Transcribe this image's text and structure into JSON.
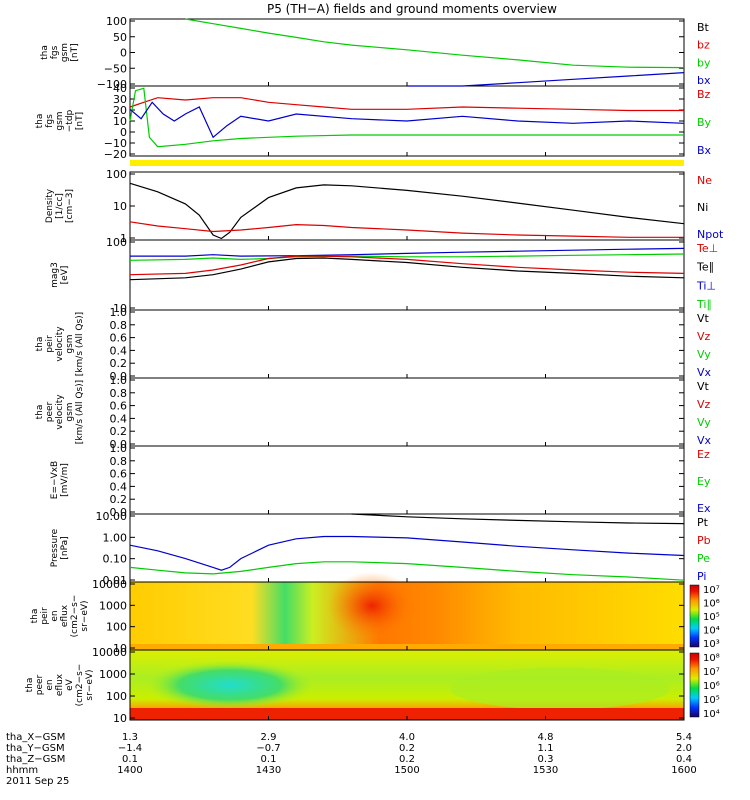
{
  "title": "P5 (TH−A) fields and ground moments overview",
  "date_label": "2011 Sep 25",
  "colors": {
    "black": "#000000",
    "red": "#dd0000",
    "green": "#00cc00",
    "blue": "#0000cc",
    "yellow": "#ffee00"
  },
  "panels": [
    {
      "id": "fgs_gse",
      "ylabel": [
        "tha",
        "fgs",
        "gsm",
        "[nT]"
      ],
      "ticks": [
        "100",
        "50",
        "0",
        "−50",
        "−100"
      ],
      "legend": [
        {
          "t": "Bt",
          "c": "black"
        },
        {
          "t": "bz",
          "c": "red"
        },
        {
          "t": "by",
          "c": "green"
        },
        {
          "t": "bx",
          "c": "blue"
        }
      ]
    },
    {
      "id": "fgs_dsl",
      "ylabel": [
        "tha",
        "fgs",
        "gsm",
        "−tdp",
        "[nT]"
      ],
      "ticks": [
        "40",
        "30",
        "20",
        "10",
        "0",
        "−10",
        "−20"
      ],
      "legend": [
        {
          "t": "Bz",
          "c": "red"
        },
        {
          "t": "By",
          "c": "green"
        },
        {
          "t": "Bx",
          "c": "blue"
        }
      ]
    },
    {
      "id": "density",
      "ylabel": [
        "Density",
        "[1/cc]",
        "[cm−3]"
      ],
      "ticks": [
        "100",
        "10",
        "1"
      ],
      "legend": [
        {
          "t": "Ne",
          "c": "red"
        },
        {
          "t": "Ni",
          "c": "black"
        },
        {
          "t": "Npot",
          "c": "blue"
        }
      ]
    },
    {
      "id": "temp",
      "ylabel": [
        "mag3",
        "[eV]"
      ],
      "ticks": [
        "100",
        "10"
      ],
      "legend": [
        {
          "t": "Te⊥",
          "c": "red"
        },
        {
          "t": "Te∥",
          "c": "black"
        },
        {
          "t": "Ti⊥",
          "c": "blue"
        },
        {
          "t": "Ti∥",
          "c": "green"
        }
      ]
    },
    {
      "id": "peir_vel",
      "ylabel": [
        "tha",
        "peir",
        "velocity",
        "gsm",
        "[km/s (All Qs)]"
      ],
      "ticks": [
        "1.0",
        "0.8",
        "0.6",
        "0.4",
        "0.2",
        "0.0"
      ],
      "legend": [
        {
          "t": "Vt",
          "c": "black"
        },
        {
          "t": "Vz",
          "c": "red"
        },
        {
          "t": "Vy",
          "c": "green"
        },
        {
          "t": "Vx",
          "c": "blue"
        }
      ]
    },
    {
      "id": "peer_vel",
      "ylabel": [
        "tha",
        "peer",
        "velocity",
        "gsm",
        "[km/s (All Qs)]"
      ],
      "ticks": [
        "1.0",
        "0.8",
        "0.6",
        "0.4",
        "0.2",
        "0.0"
      ],
      "legend": [
        {
          "t": "Vt",
          "c": "black"
        },
        {
          "t": "Vz",
          "c": "red"
        },
        {
          "t": "Vy",
          "c": "green"
        },
        {
          "t": "Vx",
          "c": "blue"
        }
      ]
    },
    {
      "id": "efield",
      "ylabel": [
        "E=−VxB",
        "[mV/m]"
      ],
      "ticks": [
        "1.0",
        "0.8",
        "0.6",
        "0.4",
        "0.2",
        "0.0"
      ],
      "legend": [
        {
          "t": "Ez",
          "c": "red"
        },
        {
          "t": "Ey",
          "c": "green"
        },
        {
          "t": "Ex",
          "c": "blue"
        }
      ]
    },
    {
      "id": "pressure",
      "ylabel": [
        "Pressure",
        "[nPa]"
      ],
      "ticks": [
        "10.00",
        "1.00",
        "0.10",
        "0.01"
      ],
      "legend": [
        {
          "t": "Pt",
          "c": "black"
        },
        {
          "t": "Pb",
          "c": "red"
        },
        {
          "t": "Pe",
          "c": "green"
        },
        {
          "t": "Pi",
          "c": "blue"
        }
      ]
    },
    {
      "id": "peir_spec",
      "ylabel": [
        "tha",
        "peir",
        "en",
        "eflux",
        "(cm2−s−",
        "sr−eV)"
      ],
      "ticks": [
        "10000",
        "1000",
        "100",
        "10"
      ],
      "cbar": [
        "10⁷",
        "10⁶",
        "10⁵",
        "10⁴",
        "10³"
      ]
    },
    {
      "id": "peer_spec",
      "ylabel": [
        "tha",
        "peer",
        "en",
        "eflux",
        "eV",
        "(cm2−s−",
        "sr−eV)"
      ],
      "ticks": [
        "10000",
        "1000",
        "100",
        "10"
      ],
      "cbar": [
        "10⁸",
        "10⁷",
        "10⁶",
        "10⁵",
        "10⁴"
      ]
    }
  ],
  "ephemeris": {
    "row_labels": [
      "tha_X−GSM",
      "tha_Y−GSM",
      "tha_Z−GSM",
      "hhmm"
    ],
    "columns": [
      [
        "1.3",
        "−1.4",
        "0.1",
        "1400"
      ],
      [
        "2.9",
        "−0.7",
        "0.1",
        "1430"
      ],
      [
        "4.0",
        "0.2",
        "0.2",
        "1500"
      ],
      [
        "4.8",
        "1.1",
        "0.3",
        "1530"
      ],
      [
        "5.4",
        "2.0",
        "0.4",
        "1600"
      ]
    ]
  },
  "chart_data": [
    {
      "type": "line",
      "panel": "fgs_gse",
      "ylim": [
        -100,
        100
      ],
      "xlim": [
        1400,
        1600
      ],
      "series": [
        {
          "name": "by",
          "color": "green",
          "x": [
            1420,
            1430,
            1440,
            1450,
            1460,
            1470,
            1480,
            1500,
            1520,
            1540,
            1560,
            1580,
            1600
          ],
          "y": [
            100,
            86,
            72,
            58,
            45,
            32,
            22,
            8,
            -8,
            -22,
            -38,
            -44,
            -45
          ]
        },
        {
          "name": "bx",
          "color": "blue",
          "x": [
            1500,
            1520,
            1540,
            1560,
            1580,
            1600
          ],
          "y": [
            -110,
            -100,
            -90,
            -80,
            -70,
            -60
          ]
        }
      ]
    },
    {
      "type": "line",
      "panel": "fgs_dsl",
      "ylim": [
        -20,
        40
      ],
      "xlim": [
        1400,
        1600
      ],
      "series": [
        {
          "name": "Bz",
          "color": "red",
          "x": [
            1400,
            1405,
            1410,
            1420,
            1430,
            1440,
            1450,
            1460,
            1470,
            1480,
            1500,
            1520,
            1540,
            1560,
            1580,
            1600
          ],
          "y": [
            22,
            26,
            30,
            28,
            30,
            30,
            26,
            24,
            22,
            20,
            20,
            22,
            21,
            20,
            19,
            19
          ]
        },
        {
          "name": "By",
          "color": "green",
          "x": [
            1400,
            1402,
            1405,
            1407,
            1410,
            1420,
            1430,
            1440,
            1450,
            1460,
            1480,
            1500,
            1520,
            1540,
            1560,
            1580,
            1600
          ],
          "y": [
            10,
            36,
            38,
            -4,
            -12,
            -10,
            -7,
            -5,
            -4,
            -3,
            -2,
            -2,
            -2,
            -2,
            -2,
            -2,
            -2
          ]
        },
        {
          "name": "Bx",
          "color": "blue",
          "x": [
            1400,
            1404,
            1408,
            1412,
            1416,
            1420,
            1425,
            1430,
            1435,
            1440,
            1450,
            1460,
            1480,
            1500,
            1520,
            1540,
            1560,
            1580,
            1600
          ],
          "y": [
            20,
            12,
            26,
            16,
            10,
            16,
            22,
            -4,
            6,
            14,
            10,
            16,
            12,
            10,
            14,
            10,
            8,
            10,
            8
          ]
        }
      ]
    },
    {
      "type": "line",
      "panel": "density",
      "yscale": "log",
      "ylim": [
        0.8,
        200
      ],
      "xlim": [
        1400,
        1600
      ],
      "series": [
        {
          "name": "Ni",
          "color": "black",
          "x": [
            1400,
            1410,
            1420,
            1425,
            1430,
            1433,
            1436,
            1440,
            1450,
            1460,
            1470,
            1480,
            1500,
            1520,
            1540,
            1560,
            1580,
            1600
          ],
          "y": [
            80,
            40,
            15,
            6,
            1.2,
            0.9,
            1.5,
            5,
            25,
            55,
            70,
            65,
            45,
            28,
            16,
            9,
            5,
            3
          ]
        },
        {
          "name": "Ne",
          "color": "red",
          "x": [
            1400,
            1410,
            1420,
            1430,
            1440,
            1450,
            1460,
            1470,
            1480,
            1500,
            1520,
            1540,
            1560,
            1580,
            1600
          ],
          "y": [
            3.5,
            2.5,
            2,
            1.6,
            1.8,
            2.2,
            2.8,
            2.6,
            2.2,
            1.8,
            1.4,
            1.2,
            1.1,
            1.0,
            1.0
          ]
        }
      ]
    },
    {
      "type": "line",
      "panel": "temp",
      "yscale": "log",
      "ylim": [
        8,
        1200
      ],
      "xlim": [
        1400,
        1600
      ],
      "series": [
        {
          "name": "Ti⊥",
          "color": "blue",
          "x": [
            1400,
            1420,
            1430,
            1440,
            1460,
            1480,
            1500,
            1520,
            1540,
            1560,
            1580,
            1600
          ],
          "y": [
            380,
            380,
            420,
            380,
            390,
            420,
            460,
            500,
            540,
            580,
            620,
            660
          ]
        },
        {
          "name": "Ti∥",
          "color": "green",
          "x": [
            1400,
            1420,
            1430,
            1440,
            1450,
            1460,
            1480,
            1500,
            1520,
            1540,
            1560,
            1580,
            1600
          ],
          "y": [
            280,
            300,
            330,
            300,
            320,
            360,
            380,
            360,
            360,
            380,
            400,
            420,
            440
          ]
        },
        {
          "name": "Te⊥",
          "color": "red",
          "x": [
            1400,
            1420,
            1430,
            1440,
            1450,
            1460,
            1470,
            1480,
            1500,
            1520,
            1540,
            1560,
            1580,
            1600
          ],
          "y": [
            100,
            110,
            140,
            200,
            320,
            380,
            380,
            360,
            300,
            220,
            170,
            140,
            120,
            110
          ]
        },
        {
          "name": "Te∥",
          "color": "black",
          "x": [
            1400,
            1420,
            1430,
            1440,
            1450,
            1460,
            1470,
            1480,
            1500,
            1520,
            1540,
            1560,
            1580,
            1600
          ],
          "y": [
            70,
            80,
            100,
            150,
            250,
            320,
            330,
            300,
            240,
            170,
            130,
            110,
            90,
            80
          ]
        }
      ]
    },
    {
      "type": "line",
      "panel": "pressure",
      "yscale": "log",
      "ylim": [
        0.008,
        40
      ],
      "xlim": [
        1400,
        1600
      ],
      "series": [
        {
          "name": "Pt",
          "color": "black",
          "x": [
            1480,
            1500,
            1520,
            1540,
            1560,
            1580,
            1600
          ],
          "y": [
            40,
            28,
            22,
            18,
            15,
            13,
            12
          ]
        },
        {
          "name": "Pi",
          "color": "blue",
          "x": [
            1400,
            1410,
            1420,
            1430,
            1433,
            1436,
            1440,
            1450,
            1460,
            1470,
            1480,
            1500,
            1520,
            1540,
            1560,
            1580,
            1600
          ],
          "y": [
            0.8,
            0.4,
            0.15,
            0.05,
            0.035,
            0.05,
            0.15,
            0.8,
            1.8,
            2.4,
            2.4,
            2.0,
            1.2,
            0.7,
            0.45,
            0.3,
            0.22
          ]
        },
        {
          "name": "Pe",
          "color": "green",
          "x": [
            1400,
            1410,
            1420,
            1430,
            1440,
            1450,
            1460,
            1470,
            1480,
            1500,
            1520,
            1540,
            1560,
            1580,
            1600
          ],
          "y": [
            0.05,
            0.035,
            0.025,
            0.022,
            0.03,
            0.05,
            0.08,
            0.1,
            0.1,
            0.08,
            0.05,
            0.03,
            0.02,
            0.015,
            0.01
          ]
        }
      ]
    },
    {
      "type": "heatmap",
      "panel": "peir_spec",
      "ylim": [
        10,
        20000
      ],
      "yscale": "log",
      "xlim": [
        1400,
        1600
      ],
      "zscale": "log",
      "zlim": [
        1000,
        10000000
      ]
    },
    {
      "type": "heatmap",
      "panel": "peer_spec",
      "ylim": [
        10,
        20000
      ],
      "yscale": "log",
      "xlim": [
        1400,
        1600
      ],
      "zscale": "log",
      "zlim": [
        10000,
        100000000
      ]
    }
  ]
}
